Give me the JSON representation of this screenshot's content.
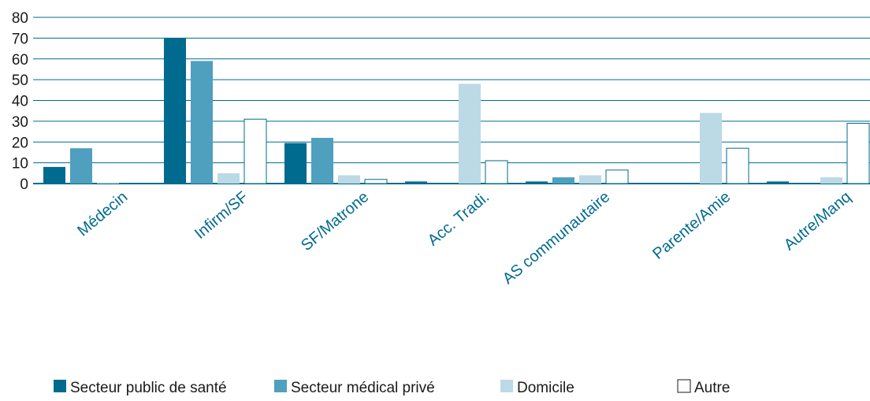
{
  "chart_data": {
    "type": "bar",
    "categories": [
      "Médecin",
      "Infirm/SF",
      "SF/Matrone",
      "Acc. Tradi.",
      "AS communautaire",
      "Parente/Amie",
      "Autre/Manq"
    ],
    "series": [
      {
        "name": "Secteur public de santé",
        "color": "#006b8f",
        "values": [
          8,
          70,
          19.5,
          1,
          1,
          0,
          1
        ]
      },
      {
        "name": "Secteur médical privé",
        "color": "#4f9fbf",
        "values": [
          17,
          59,
          22,
          0,
          3,
          0,
          0
        ]
      },
      {
        "name": "Domicile",
        "color": "#bcd9e6",
        "values": [
          0.5,
          5,
          4,
          48,
          4,
          34,
          3
        ]
      },
      {
        "name": "Autre",
        "color": "#ffffff",
        "values": [
          0,
          31,
          2,
          11,
          6.5,
          17,
          29
        ]
      }
    ],
    "ylim": [
      0,
      80
    ],
    "yticks": [
      0,
      10,
      20,
      30,
      40,
      50,
      60,
      70,
      80
    ],
    "grid": true,
    "legend": "bottom"
  }
}
